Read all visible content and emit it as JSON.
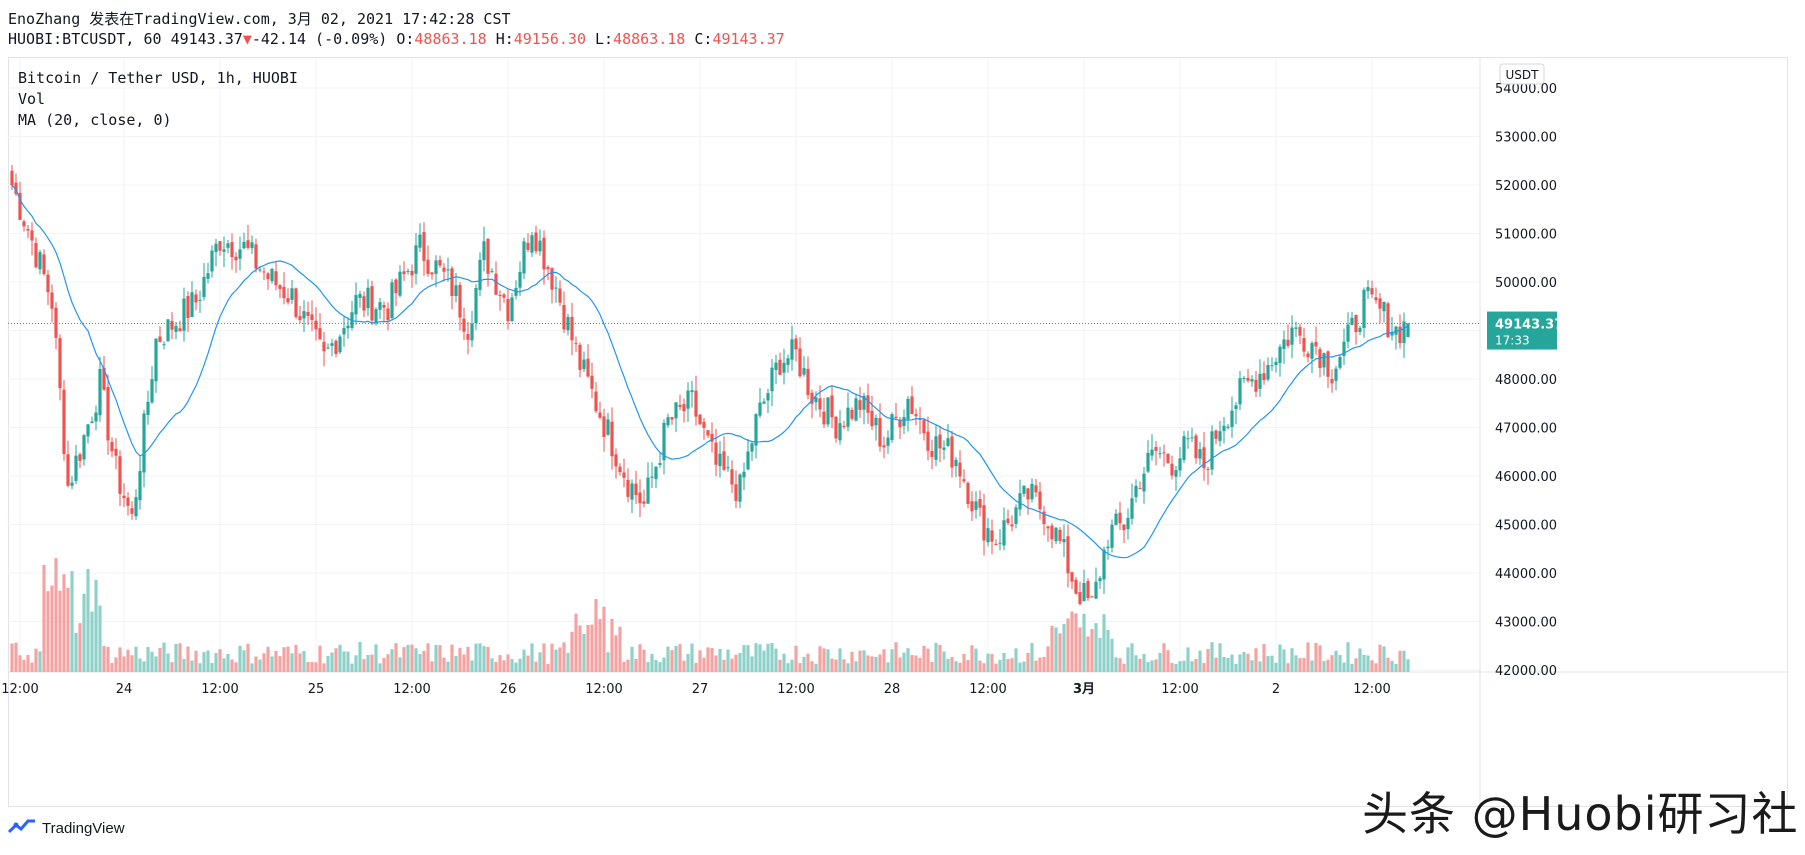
{
  "header": {
    "line1": "EnoZhang 发表在TradingView.com, 3月 02, 2021 17:42:28 CST",
    "symbol": "HUOBI:BTCUSDT, 60",
    "last": "49143.37",
    "change_arrow": "▼",
    "change": "-42.14 (-0.09%)",
    "o_label": "O:",
    "o": "48863.18",
    "h_label": "H:",
    "h": "49156.30",
    "l_label": "L:",
    "l": "48863.18",
    "c_label": "C:",
    "c": "49143.37"
  },
  "legend": {
    "title": "Bitcoin / Tether USD, 1h, HUOBI",
    "vol": "Vol",
    "ma": "MA (20, close, 0)"
  },
  "footer": {
    "brand": "TradingView",
    "watermark": "头条 @Huobi研习社"
  },
  "colors": {
    "up": "#26a69a",
    "down": "#ef5350",
    "ma": "#2196f3",
    "vol_up": "#8fd1c9",
    "vol_down": "#f2a3a2",
    "price_tag": "#26a69a"
  },
  "chart_data": {
    "type": "candlestick",
    "title": "Bitcoin / Tether USD, 1h, HUOBI",
    "currency": "USDT",
    "ylim": [
      41800,
      55200
    ],
    "y_ticks": [
      "54000.00",
      "53000.00",
      "52000.00",
      "51000.00",
      "50000.00",
      "49000.00",
      "48000.00",
      "47000.00",
      "46000.00",
      "45000.00",
      "44000.00",
      "43000.00",
      "42000.00"
    ],
    "x_ticks": [
      {
        "label": "12:00",
        "index": 2
      },
      {
        "label": "24",
        "index": 28
      },
      {
        "label": "12:00",
        "index": 52
      },
      {
        "label": "25",
        "index": 76
      },
      {
        "label": "12:00",
        "index": 100
      },
      {
        "label": "26",
        "index": 124
      },
      {
        "label": "12:00",
        "index": 148
      },
      {
        "label": "27",
        "index": 172
      },
      {
        "label": "12:00",
        "index": 196
      },
      {
        "label": "28",
        "index": 220
      },
      {
        "label": "12:00",
        "index": 244
      },
      {
        "label": "3月",
        "index": 268
      },
      {
        "label": "12:00",
        "index": 292
      },
      {
        "label": "2",
        "index": 316
      },
      {
        "label": "12:00",
        "index": 340
      }
    ],
    "last_price": "49143.37",
    "last_time": "17:33",
    "anchors": [
      [
        0,
        52000
      ],
      [
        4,
        51100
      ],
      [
        10,
        49600
      ],
      [
        14,
        45800
      ],
      [
        18,
        46800
      ],
      [
        22,
        47900
      ],
      [
        26,
        46100
      ],
      [
        30,
        45100
      ],
      [
        36,
        48800
      ],
      [
        46,
        49600
      ],
      [
        52,
        50900
      ],
      [
        58,
        50700
      ],
      [
        64,
        50100
      ],
      [
        70,
        49700
      ],
      [
        78,
        48400
      ],
      [
        86,
        49600
      ],
      [
        94,
        49500
      ],
      [
        102,
        50700
      ],
      [
        110,
        49900
      ],
      [
        114,
        49100
      ],
      [
        118,
        50600
      ],
      [
        124,
        49500
      ],
      [
        130,
        51200
      ],
      [
        136,
        49900
      ],
      [
        142,
        48300
      ],
      [
        148,
        47100
      ],
      [
        154,
        45900
      ],
      [
        158,
        45400
      ],
      [
        164,
        47100
      ],
      [
        170,
        47500
      ],
      [
        176,
        46200
      ],
      [
        182,
        45700
      ],
      [
        186,
        47100
      ],
      [
        192,
        48400
      ],
      [
        196,
        48500
      ],
      [
        200,
        47700
      ],
      [
        206,
        47100
      ],
      [
        212,
        47500
      ],
      [
        218,
        46700
      ],
      [
        224,
        47600
      ],
      [
        230,
        46700
      ],
      [
        236,
        46400
      ],
      [
        242,
        45100
      ],
      [
        246,
        44700
      ],
      [
        254,
        45600
      ],
      [
        258,
        45300
      ],
      [
        262,
        44600
      ],
      [
        266,
        43700
      ],
      [
        270,
        43300
      ],
      [
        274,
        44800
      ],
      [
        278,
        45000
      ],
      [
        282,
        46000
      ],
      [
        286,
        46500
      ],
      [
        290,
        46300
      ],
      [
        294,
        46600
      ],
      [
        298,
        46200
      ],
      [
        302,
        47100
      ],
      [
        308,
        47800
      ],
      [
        314,
        48300
      ],
      [
        320,
        49000
      ],
      [
        326,
        48700
      ],
      [
        330,
        48200
      ],
      [
        334,
        48800
      ],
      [
        338,
        49600
      ],
      [
        342,
        49400
      ],
      [
        346,
        49000
      ],
      [
        349,
        49143
      ]
    ],
    "volume_level": "low-moderate, spikes near 23rd 12:00-24 and 26th afternoon"
  }
}
